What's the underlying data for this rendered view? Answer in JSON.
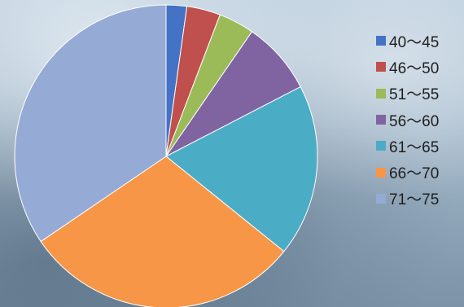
{
  "chart_data": {
    "type": "pie",
    "title": "",
    "legend_position": "right",
    "start_angle": "top (12 o'clock), clockwise",
    "categories": [
      "40～45",
      "46～50",
      "51～55",
      "56～60",
      "61～65",
      "66～70",
      "71～75"
    ],
    "values": [
      2.2,
      3.6,
      3.8,
      7.8,
      18.4,
      29.7,
      34.5
    ],
    "colors": [
      "#4472c4",
      "#c0504d",
      "#9bbb59",
      "#8064a2",
      "#4bacc6",
      "#f79646",
      "#95abd6"
    ]
  }
}
